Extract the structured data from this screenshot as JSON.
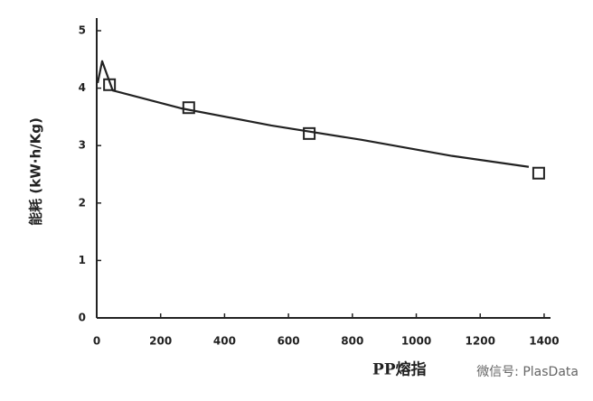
{
  "chart_data": {
    "type": "line",
    "x_label": "PP熔指",
    "y_label": "能耗 (kW·h/Kg)",
    "watermark": "微信号: PlasData",
    "xlim": [
      0,
      1420
    ],
    "xticks": [
      0,
      200,
      400,
      600,
      800,
      1000,
      1200,
      1400
    ],
    "ylim": [
      0,
      5
    ],
    "yticks": [
      0,
      1,
      2,
      3,
      4,
      5
    ],
    "grid": false,
    "series": [
      {
        "style": "markers",
        "color": "#222222",
        "x": [
          40,
          288,
          665,
          1383
        ],
        "values": [
          4.06,
          3.66,
          3.21,
          2.52
        ]
      },
      {
        "style": "line",
        "color": "#222222",
        "x": [
          3,
          17,
          50,
          263,
          546,
          829,
          1112,
          1352
        ],
        "values": [
          4.09,
          4.47,
          3.96,
          3.65,
          3.35,
          3.1,
          2.82,
          2.63
        ]
      }
    ]
  }
}
